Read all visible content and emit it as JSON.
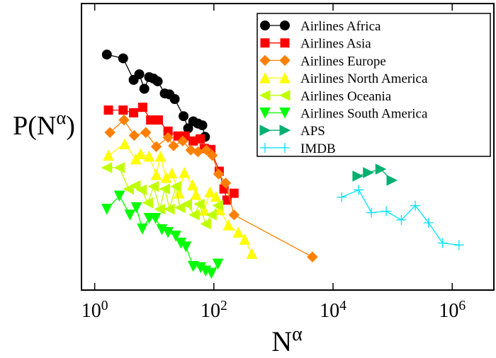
{
  "chart_data": {
    "type": "scatter",
    "log_x": true,
    "log_y": true,
    "x_label": "N^α",
    "y_label": "P(N^α)",
    "xlim": [
      0.6,
      5000000
    ],
    "ylim": [
      1e-07,
      100
    ],
    "xticks": [
      {
        "value": 1,
        "label": "10^0"
      },
      {
        "value": 100,
        "label": "10^2"
      },
      {
        "value": 10000,
        "label": "10^4"
      },
      {
        "value": 1000000,
        "label": "10^6"
      }
    ],
    "legend": "upper right",
    "series": [
      {
        "name": "Airlines Africa",
        "color": "#000000",
        "marker": "circle",
        "line": true,
        "x": [
          1.6,
          3.0,
          4.5,
          5.6,
          6.8,
          8.2,
          9.7,
          11.4,
          15,
          18,
          22,
          31,
          37,
          45,
          54,
          64,
          71
        ],
        "values": [
          2.5,
          1.9,
          0.4,
          0.6,
          0.21,
          0.49,
          0.44,
          0.36,
          0.15,
          0.14,
          0.1,
          0.029,
          0.012,
          0.02,
          0.017,
          0.015,
          0.0065
        ]
      },
      {
        "name": "Airlines Asia",
        "color": "#ff0000",
        "marker": "square",
        "line": true,
        "x": [
          1.7,
          3.0,
          4.5,
          6.4,
          8.7,
          11.7,
          17,
          25,
          33,
          45,
          59,
          69,
          89,
          123,
          148,
          166,
          218
        ],
        "values": [
          0.045,
          0.045,
          0.037,
          0.055,
          0.022,
          0.022,
          0.0098,
          0.0069,
          0.0069,
          0.0048,
          0.0056,
          0.0028,
          0.0026,
          0.00054,
          0.00015,
          6.7e-05,
          0.00011
        ]
      },
      {
        "name": "Airlines Europe",
        "color": "#ff8000",
        "marker": "diamond",
        "line": true,
        "x": [
          1.8,
          3.1,
          4.6,
          7.2,
          10.8,
          17,
          21,
          30,
          41,
          54,
          75,
          94,
          120,
          158,
          218,
          4500
        ],
        "values": [
          0.0089,
          0.022,
          0.0072,
          0.0089,
          0.0032,
          0.0062,
          0.0034,
          0.0048,
          0.0025,
          0.0022,
          0.0025,
          0.0017,
          0.00044,
          0.00023,
          2.3e-05,
          1.1e-06
        ]
      },
      {
        "name": "Airlines North America",
        "color": "#ffff00",
        "marker": "triangle-up",
        "line": true,
        "x": [
          1.7,
          3.2,
          4.9,
          5.9,
          8.2,
          10.8,
          12.7,
          15.8,
          19.7,
          26,
          32,
          44,
          50,
          69,
          86,
          108,
          126,
          175,
          257,
          330,
          433
        ],
        "values": [
          0.0017,
          0.0039,
          0.0013,
          0.0019,
          0.0016,
          0.00042,
          0.0016,
          0.00034,
          0.00047,
          0.00011,
          0.00049,
          0.0002,
          0.0001,
          3.2e-05,
          0.00012,
          8.7e-05,
          3.3e-05,
          1.1e-05,
          6.5e-06,
          3.9e-06,
          1.4e-06
        ]
      },
      {
        "name": "Airlines Oceania",
        "color": "#c0ff00",
        "marker": "triangle-left",
        "line": true,
        "x": [
          1.6,
          2.6,
          3.7,
          4.8,
          6.1,
          7.8,
          9.7,
          12.4,
          15,
          18,
          23,
          27,
          35,
          47,
          57,
          73,
          91,
          117
        ],
        "values": [
          0.0007,
          0.0007,
          0.00015,
          0.00019,
          0.00014,
          5.5e-05,
          0.00018,
          3.5e-05,
          0.00015,
          3.5e-05,
          0.00018,
          3.9e-05,
          5e-05,
          2.3e-05,
          5e-05,
          1.2e-05,
          2.3e-05,
          4.5e-05
        ]
      },
      {
        "name": "Airlines South America",
        "color": "#00ff00",
        "marker": "triangle-down",
        "line": true,
        "x": [
          1.6,
          2.6,
          3.9,
          5.0,
          6.3,
          8.2,
          10.5,
          13.4,
          17,
          23,
          28,
          34,
          45,
          60,
          73,
          91,
          117
        ],
        "values": [
          3.5e-05,
          9.1e-05,
          2.3e-05,
          3.9e-05,
          8.4e-06,
          1.8e-05,
          1.8e-05,
          8e-06,
          6.5e-06,
          5e-06,
          3e-06,
          2.3e-06,
          5.6e-07,
          5.1e-07,
          4e-07,
          3.4e-07,
          6.6e-07
        ]
      },
      {
        "name": "APS",
        "color": "#00b070",
        "marker": "triangle-right",
        "line": true,
        "x": [
          26000,
          39000,
          63000,
          97000
        ],
        "values": [
          0.00038,
          0.00049,
          0.00063,
          0.00028
        ]
      },
      {
        "name": "IMDB",
        "color": "#00e0ff",
        "marker": "plus",
        "line": true,
        "x": [
          14000,
          27000,
          44000,
          78000,
          140000,
          240000,
          400000,
          690000,
          1300000
        ],
        "values": [
          8.3e-05,
          0.00014,
          2.7e-05,
          3e-05,
          1.6e-05,
          4.5e-05,
          1.3e-05,
          3e-06,
          2.6e-06
        ]
      }
    ]
  }
}
